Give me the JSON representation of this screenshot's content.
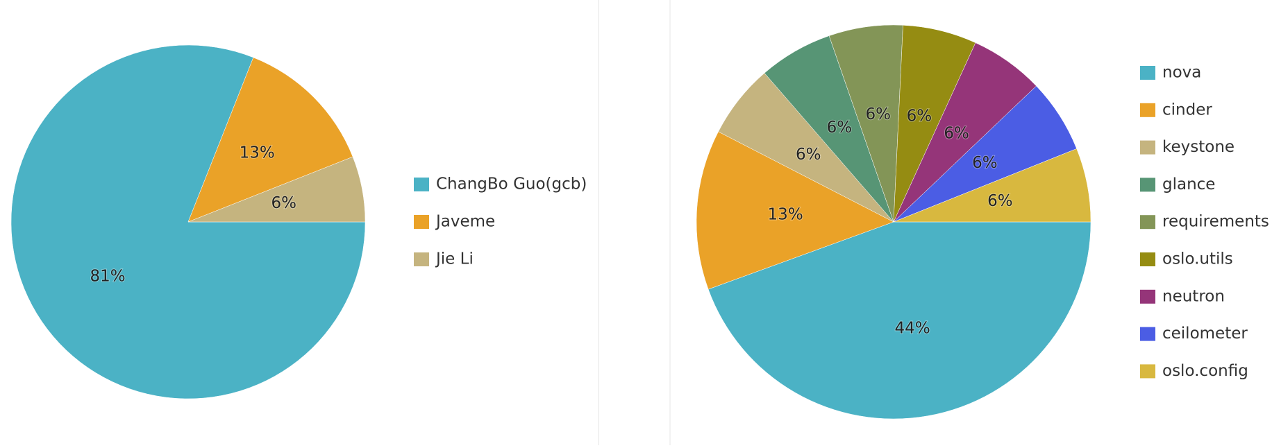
{
  "chart_data": [
    {
      "type": "pie",
      "legend": "right",
      "categories": [
        "ChangBo Guo(gcb)",
        "Javeme",
        "Jie Li"
      ],
      "values": [
        81,
        13,
        6
      ],
      "value_labels": [
        "81%",
        "13%",
        "6%"
      ],
      "colors": [
        "#4bb2c5",
        "#eaa228",
        "#c5b47f"
      ]
    },
    {
      "type": "pie",
      "legend": "right",
      "categories": [
        "nova",
        "cinder",
        "keystone",
        "glance",
        "requirements",
        "oslo.utils",
        "neutron",
        "ceilometer",
        "oslo.config"
      ],
      "values": [
        44,
        13,
        6,
        6,
        6,
        6,
        6,
        6,
        6
      ],
      "value_labels": [
        "44%",
        "13%",
        "6%",
        "6%",
        "6%",
        "6%",
        "6%",
        "6%",
        "6%"
      ],
      "colors": [
        "#4bb2c5",
        "#eaa228",
        "#c5b47f",
        "#579575",
        "#839557",
        "#958c12",
        "#953579",
        "#4b5de4",
        "#d8b83f"
      ]
    }
  ]
}
